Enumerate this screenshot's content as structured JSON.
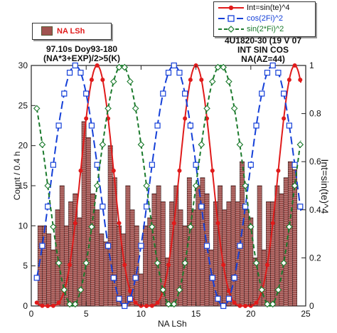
{
  "chart_data": {
    "type": "bar",
    "title": "",
    "xlabel": "NA LSh",
    "ylabel": "Count / 0.4 h",
    "y2label": "Int=sin(te)^4",
    "xlim": [
      0,
      25
    ],
    "ylim": [
      0,
      30
    ],
    "y2lim": [
      0,
      1
    ],
    "xticks": [
      0,
      5,
      10,
      15,
      20,
      25
    ],
    "yticks": [
      0,
      5,
      10,
      15,
      20,
      25,
      30
    ],
    "y2ticks": [
      0,
      0.2,
      0.4,
      0.6,
      0.8,
      1
    ],
    "grid": false,
    "annotations": {
      "left": [
        "97.10s Doy93-180",
        "(NA*3+EXP)/2>5(K)"
      ],
      "right": [
        "4U1820-30 (19 V 07",
        "INT SIN COS",
        "NA(AZ=44)"
      ]
    },
    "legend_left": {
      "position": "top-left",
      "entries": [
        {
          "name": "NA LSh",
          "color": "#a0524f"
        }
      ]
    },
    "legend_right": {
      "position": "top-right",
      "entries": [
        {
          "name": "Int=sin(te)^4",
          "color": "#e01b1b"
        },
        {
          "name": "cos(2Fi)^2",
          "color": "#1540d8"
        },
        {
          "name": "sin(2*Fi)^2",
          "color": "#1b7a2c"
        }
      ]
    },
    "bars": {
      "name": "NA LSh",
      "color": "#a0524f",
      "x": [
        0.8,
        1.2,
        1.6,
        2.0,
        2.4,
        2.8,
        3.2,
        3.6,
        4.0,
        4.4,
        4.8,
        5.2,
        5.6,
        6.0,
        6.4,
        6.8,
        7.2,
        7.6,
        8.0,
        8.4,
        8.8,
        9.2,
        9.6,
        10.0,
        10.4,
        10.8,
        11.2,
        11.6,
        12.0,
        12.4,
        12.8,
        13.2,
        13.6,
        14.0,
        14.4,
        14.8,
        15.2,
        15.6,
        16.0,
        16.4,
        16.8,
        17.2,
        17.6,
        18.0,
        18.4,
        18.8,
        19.2,
        19.6,
        20.0,
        20.4,
        20.8,
        21.2,
        21.6,
        22.0,
        22.4,
        22.8,
        23.2,
        23.6,
        24.0
      ],
      "values": [
        10,
        10,
        9,
        7,
        12,
        15,
        10,
        13,
        14,
        11,
        23,
        21,
        14,
        12,
        9,
        8,
        20,
        16,
        10,
        9,
        15,
        12,
        10,
        4,
        10,
        11,
        14,
        15,
        13,
        6,
        13,
        15,
        12,
        10,
        16,
        12,
        15,
        16,
        14,
        7,
        13,
        15,
        12,
        13,
        15,
        13,
        18,
        12,
        11,
        6,
        15,
        7,
        13,
        13,
        15,
        14,
        16,
        18,
        17
      ]
    },
    "series": [
      {
        "name": "Int=sin(te)^4",
        "color": "#e01b1b",
        "marker": "circle",
        "dash": "solid",
        "period": 9,
        "phase": 6,
        "kind": "sin4"
      },
      {
        "name": "cos(2Fi)^2",
        "color": "#1540d8",
        "marker": "square",
        "dash": "long-dash",
        "period": 9,
        "phase": 4,
        "kind": "cos2"
      },
      {
        "name": "sin(2*Fi)^2",
        "color": "#1b7a2c",
        "marker": "diamond",
        "dash": "dash",
        "period": 9,
        "phase": 8.25,
        "kind": "cos2"
      }
    ]
  }
}
